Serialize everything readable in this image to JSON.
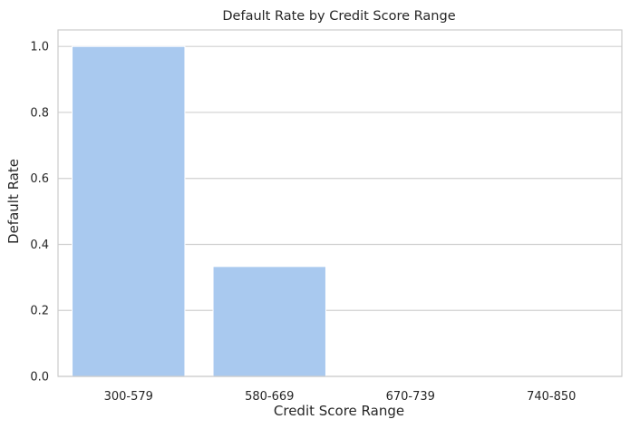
{
  "chart_data": {
    "type": "bar",
    "title": "Default Rate by Credit Score Range",
    "xlabel": "Credit Score Range",
    "ylabel": "Default Rate",
    "categories": [
      "300-579",
      "580-669",
      "670-739",
      "740-850"
    ],
    "values": [
      1.0,
      0.333,
      0.0,
      0.0
    ],
    "ylim": [
      0,
      1.05
    ],
    "yticks": [
      "0.0",
      "0.2",
      "0.4",
      "0.6",
      "0.8",
      "1.0"
    ],
    "grid": "horizontal",
    "colors": {
      "bar": "#a9c9ef",
      "grid": "#d0d0d0",
      "spine": "#cccccc",
      "text": "#262626"
    }
  }
}
